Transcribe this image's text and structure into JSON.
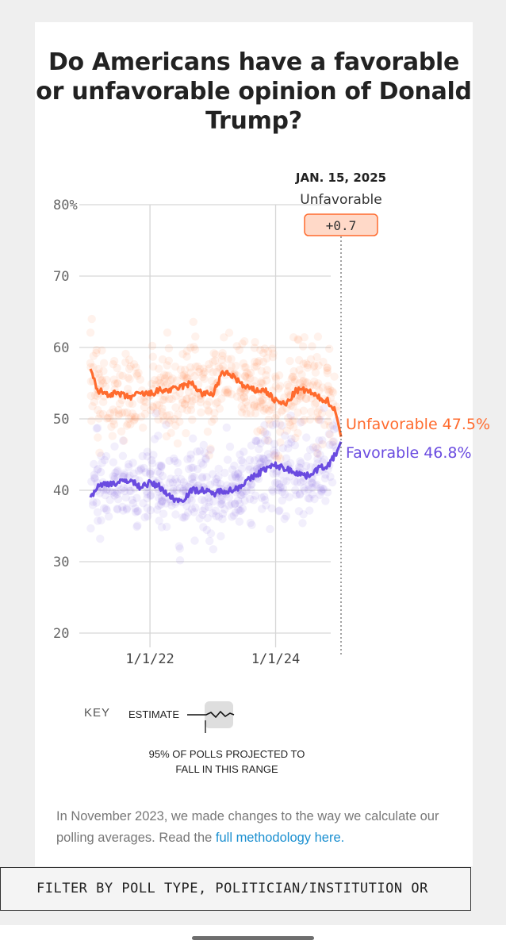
{
  "title": "Do Americans have a favorable or unfavorable opinion of Donald Trump?",
  "chart_data": {
    "type": "line",
    "y_ticks": [
      "80%",
      "70",
      "60",
      "50",
      "40",
      "30",
      "20"
    ],
    "ylim": [
      20,
      80
    ],
    "x_ticks": [
      "1/1/22",
      "1/1/24"
    ],
    "highlight": {
      "date": "JAN. 15, 2025",
      "leader": "Unfavorable",
      "margin": "+0.7"
    },
    "series": [
      {
        "name": "Unfavorable",
        "label": "Unfavorable 47.5%",
        "color": "#ff6b2e",
        "x": [
          "2021-01-20",
          "2021-03-01",
          "2021-05-01",
          "2021-07-01",
          "2021-09-01",
          "2021-11-01",
          "2022-01-01",
          "2022-03-01",
          "2022-05-01",
          "2022-07-01",
          "2022-09-01",
          "2022-11-01",
          "2023-01-01",
          "2023-03-01",
          "2023-05-01",
          "2023-07-01",
          "2023-09-01",
          "2023-11-01",
          "2024-01-01",
          "2024-03-01",
          "2024-05-01",
          "2024-07-01",
          "2024-09-01",
          "2024-11-01",
          "2024-12-15",
          "2025-01-15"
        ],
        "values": [
          57,
          54,
          53.5,
          53.5,
          53,
          53.5,
          53.5,
          54,
          54,
          54.5,
          55,
          53.5,
          53.5,
          56.5,
          56,
          54.5,
          54,
          54,
          52.5,
          52,
          54,
          54,
          53,
          52.5,
          51,
          47.5
        ]
      },
      {
        "name": "Favorable",
        "label": "Favorable 46.8%",
        "color": "#6a4be0",
        "x": [
          "2021-01-20",
          "2021-03-01",
          "2021-05-01",
          "2021-07-01",
          "2021-09-01",
          "2021-11-01",
          "2022-01-01",
          "2022-03-01",
          "2022-05-01",
          "2022-07-01",
          "2022-09-01",
          "2022-11-01",
          "2023-01-01",
          "2023-03-01",
          "2023-05-01",
          "2023-07-01",
          "2023-09-01",
          "2023-11-01",
          "2024-01-01",
          "2024-03-01",
          "2024-05-01",
          "2024-07-01",
          "2024-09-01",
          "2024-11-01",
          "2024-12-15",
          "2025-01-15"
        ],
        "values": [
          39,
          40.5,
          41,
          41,
          41.5,
          40.5,
          41,
          40.5,
          39,
          38.5,
          40,
          40,
          39.5,
          40,
          40,
          41,
          42,
          43,
          43.5,
          43,
          42.5,
          42,
          43,
          43.5,
          45,
          46.8
        ]
      }
    ],
    "grid": true
  },
  "key": {
    "label": "KEY",
    "estimate": "ESTIMATE",
    "range_line1": "95% OF POLLS PROJECTED TO",
    "range_line2": "FALL IN THIS RANGE"
  },
  "methodology": {
    "text": "In November 2023, we made changes to the way we calculate our polling averages. Read the ",
    "link": "full methodology here."
  },
  "filter": {
    "text": "FILTER BY POLL TYPE, POLITICIAN/INSTITUTION OR"
  }
}
